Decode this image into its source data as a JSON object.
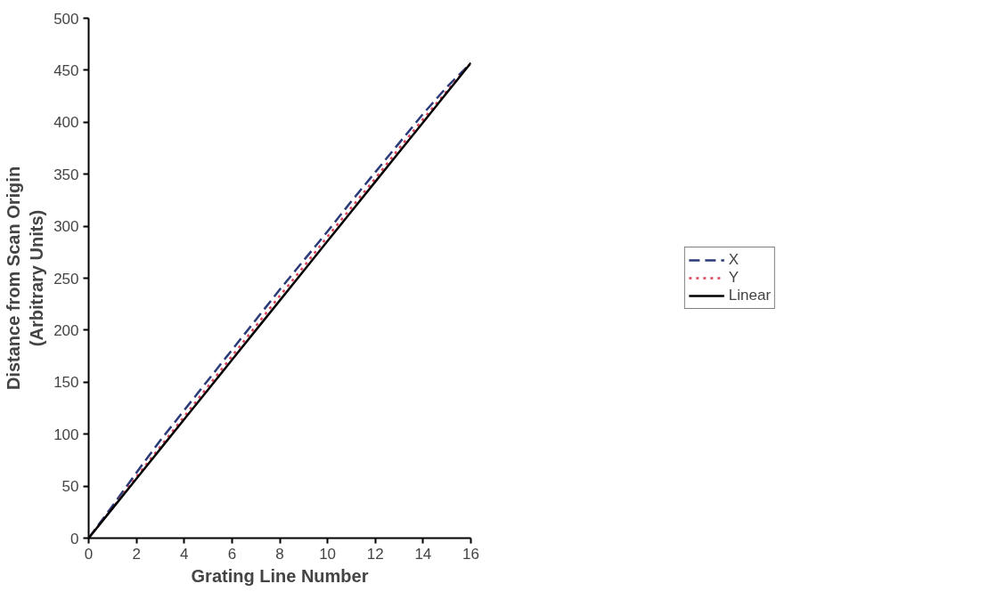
{
  "chart_data": {
    "type": "line",
    "xlabel": "Grating Line Number",
    "ylabel": "Distance from Scan Origin\n(Arbitrary Units)",
    "x": [
      0,
      1,
      2,
      3,
      4,
      5,
      6,
      7,
      8,
      9,
      10,
      11,
      12,
      13,
      14,
      15,
      16
    ],
    "series": [
      {
        "name": "X",
        "color": "#2b3a78",
        "line_style": "dashed",
        "values": [
          0,
          31,
          63,
          94,
          123,
          152,
          181,
          210,
          239,
          267,
          295,
          324,
          352,
          380,
          408,
          434,
          457
        ]
      },
      {
        "name": "Y",
        "color": "#e0405a",
        "line_style": "dotted",
        "values": [
          0,
          29,
          59,
          88,
          117,
          146,
          175,
          204,
          233,
          261,
          290,
          318,
          346,
          375,
          403,
          430,
          457
        ]
      },
      {
        "name": "Linear",
        "color": "#000000",
        "line_style": "solid",
        "values": [
          0,
          28.6,
          57.1,
          85.7,
          114.3,
          142.8,
          171.4,
          200,
          228.5,
          257.1,
          285.7,
          314.2,
          342.8,
          371.4,
          399.9,
          428.5,
          457
        ]
      }
    ],
    "xlim": [
      0,
      16
    ],
    "xticks": [
      0,
      2,
      4,
      6,
      8,
      10,
      12,
      14,
      16
    ],
    "ylim": [
      0,
      500
    ],
    "yticks": [
      0,
      50,
      100,
      150,
      200,
      250,
      300,
      350,
      400,
      450,
      500
    ],
    "grid": false,
    "legend": "right",
    "marker": "none"
  }
}
